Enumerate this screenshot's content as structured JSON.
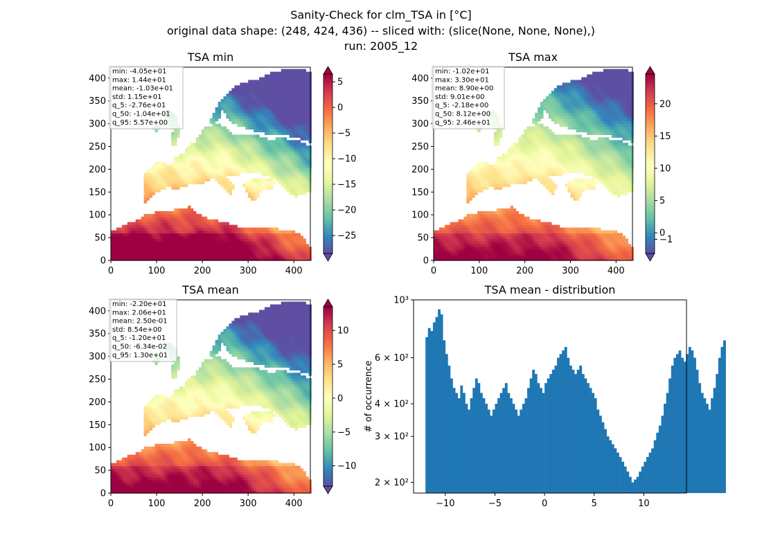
{
  "figure": {
    "title_line1": "Sanity-Check for clm_TSA in [°C]",
    "title_line2": "original data shape: (248, 424, 436) -- sliced with: (slice(None, None, None),)",
    "title_line3": "run: 2005_12"
  },
  "colormap": "Spectral_r",
  "chart_data": [
    {
      "type": "heatmap",
      "title": "TSA min",
      "x_ticks": [
        0,
        100,
        200,
        300,
        400
      ],
      "y_ticks": [
        0,
        50,
        100,
        150,
        200,
        250,
        300,
        350,
        400
      ],
      "xlim": [
        0,
        436
      ],
      "ylim": [
        0,
        424
      ],
      "colorbar": {
        "vmin": -28.5,
        "vmax": 6.5,
        "ticks": [
          -25,
          -20,
          -15,
          -10,
          -5,
          0,
          5
        ],
        "extend": "both"
      },
      "stats": [
        "min: -4.05e+01",
        "max: 1.44e+01",
        "mean: -1.03e+01",
        "std: 1.15e+01",
        "q_5: -2.76e+01",
        "q_50: -1.04e+01",
        "q_95: 5.57e+00"
      ]
    },
    {
      "type": "heatmap",
      "title": "TSA max",
      "x_ticks": [
        0,
        100,
        200,
        300,
        400
      ],
      "y_ticks": [
        0,
        50,
        100,
        150,
        200,
        250,
        300,
        350,
        400
      ],
      "xlim": [
        0,
        436
      ],
      "ylim": [
        0,
        424
      ],
      "colorbar": {
        "vmin": -3.2,
        "vmax": 24.6,
        "ticks": [
          0,
          5,
          10,
          15,
          20
        ],
        "ticklabels": [
          "0",
          "5",
          "10",
          "15",
          "20"
        ],
        "extra_ticks": [
          -1
        ],
        "extra_ticklabels": [
          "−1"
        ],
        "extend": "both"
      },
      "stats": [
        "min: -1.02e+01",
        "max: 3.30e+01",
        "mean: 8.90e+00",
        "std: 9.01e+00",
        "q_5: -2.18e+00",
        "q_50: 8.12e+00",
        "q_95: 2.46e+01"
      ]
    },
    {
      "type": "heatmap",
      "title": "TSA mean",
      "x_ticks": [
        0,
        100,
        200,
        300,
        400
      ],
      "y_ticks": [
        0,
        50,
        100,
        150,
        200,
        250,
        300,
        350,
        400
      ],
      "xlim": [
        0,
        436
      ],
      "ylim": [
        0,
        424
      ],
      "colorbar": {
        "vmin": -13,
        "vmax": 13.5,
        "ticks": [
          -10,
          -5,
          0,
          5,
          10
        ],
        "extend": "both"
      },
      "stats": [
        "min: -2.20e+01",
        "max: 2.06e+01",
        "mean: 2.50e-01",
        "std: 8.54e+00",
        "q_5: -1.20e+01",
        "q_50: -6.34e-02",
        "q_95: 1.30e+01"
      ]
    },
    {
      "type": "bar",
      "title": "TSA mean - distribution",
      "ylabel": "# of occurrence",
      "yscale": "log",
      "ylim": [
        182,
        1000
      ],
      "xlim": [
        -13.2,
        14.3
      ],
      "x_ticks": [
        -10,
        -5,
        0,
        5,
        10
      ],
      "y_ticks": [
        200,
        300,
        400,
        600,
        1000
      ],
      "y_ticklabels": [
        "2 × 10²",
        "3 × 10²",
        "4 × 10²",
        "6 × 10²",
        "10³"
      ],
      "color": "#1f77b4",
      "bin_start": -12.0,
      "bin_width": 0.25,
      "values": [
        720,
        780,
        760,
        820,
        860,
        920,
        880,
        700,
        620,
        560,
        500,
        460,
        440,
        420,
        470,
        440,
        400,
        380,
        420,
        460,
        500,
        480,
        440,
        420,
        400,
        380,
        360,
        380,
        400,
        420,
        440,
        460,
        480,
        440,
        420,
        400,
        380,
        360,
        380,
        400,
        420,
        460,
        500,
        540,
        520,
        480,
        460,
        440,
        480,
        500,
        520,
        540,
        560,
        600,
        620,
        640,
        660,
        600,
        560,
        540,
        520,
        540,
        560,
        520,
        500,
        480,
        460,
        440,
        420,
        380,
        360,
        340,
        320,
        300,
        290,
        280,
        270,
        260,
        250,
        240,
        230,
        220,
        210,
        200,
        205,
        210,
        220,
        230,
        240,
        250,
        260,
        270,
        290,
        310,
        330,
        360,
        400,
        440,
        500,
        560,
        600,
        620,
        640,
        600,
        580,
        620,
        660,
        640,
        600,
        540,
        480,
        440,
        420,
        400,
        380,
        420,
        460,
        520,
        600,
        660,
        700
      ]
    }
  ]
}
